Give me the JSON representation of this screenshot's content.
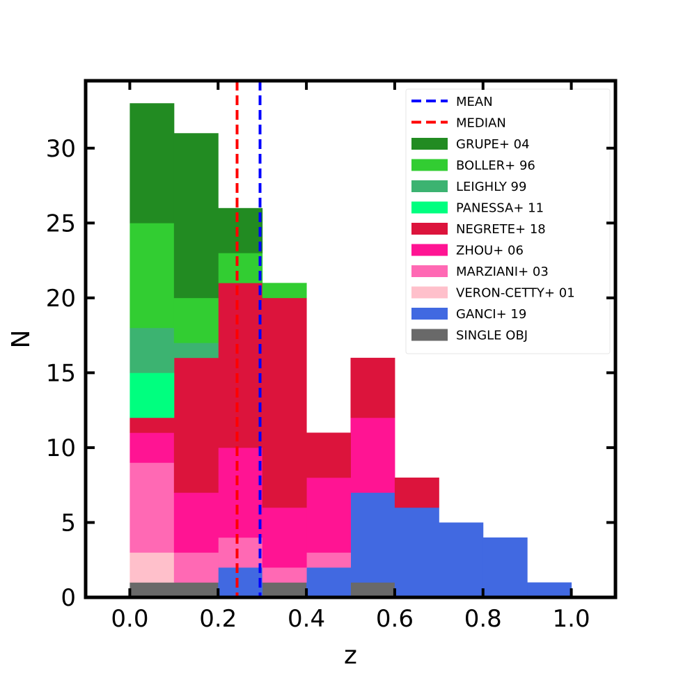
{
  "chart_data": {
    "type": "bar",
    "subtype": "stacked-histogram",
    "xlabel": "z",
    "ylabel": "N",
    "xlim": [
      -0.1,
      1.1
    ],
    "ylim": [
      0,
      34.5
    ],
    "xticks": [
      "0.0",
      "0.2",
      "0.4",
      "0.6",
      "0.8",
      "1.0"
    ],
    "xtick_values": [
      0.0,
      0.2,
      0.4,
      0.6,
      0.8,
      1.0
    ],
    "yticks": [
      "0",
      "5",
      "10",
      "15",
      "20",
      "25",
      "30"
    ],
    "ytick_values": [
      0,
      5,
      10,
      15,
      20,
      25,
      30
    ],
    "grid": false,
    "legend_position": "top-right",
    "bin_edges": [
      0.0,
      0.1,
      0.2,
      0.3,
      0.4,
      0.5,
      0.6,
      0.7,
      0.8,
      0.9,
      1.0
    ],
    "series": [
      {
        "name": "SINGLE OBJ",
        "color": "#696969",
        "values": [
          1,
          1,
          0,
          1,
          0,
          1,
          0,
          0,
          0,
          0
        ]
      },
      {
        "name": "GANCI+ 19",
        "color": "#4169e1",
        "values": [
          0,
          0,
          2,
          0,
          2,
          6,
          6,
          5,
          4,
          1
        ]
      },
      {
        "name": "VERON-CETTY+ 01",
        "color": "#ffc0cb",
        "values": [
          2,
          0,
          0,
          0,
          0,
          0,
          0,
          0,
          0,
          0
        ]
      },
      {
        "name": "MARZIANI+ 03",
        "color": "#ff69b4",
        "values": [
          6,
          2,
          2,
          1,
          1,
          0,
          0,
          0,
          0,
          0
        ]
      },
      {
        "name": "ZHOU+ 06",
        "color": "#ff1493",
        "values": [
          2,
          4,
          6,
          4,
          5,
          5,
          0,
          0,
          0,
          0
        ]
      },
      {
        "name": "NEGRETE+ 18",
        "color": "#dc143c",
        "values": [
          1,
          9,
          11,
          14,
          3,
          4,
          2,
          0,
          0,
          0
        ]
      },
      {
        "name": "PANESSA+ 11",
        "color": "#00ff7f",
        "values": [
          3,
          0,
          0,
          0,
          0,
          0,
          0,
          0,
          0,
          0
        ]
      },
      {
        "name": "LEIGHLY 99",
        "color": "#3cb371",
        "values": [
          3,
          1,
          0,
          0,
          0,
          0,
          0,
          0,
          0,
          0
        ]
      },
      {
        "name": "BOLLER+ 96",
        "color": "#32cd32",
        "values": [
          7,
          3,
          2,
          1,
          0,
          0,
          0,
          0,
          0,
          0
        ]
      },
      {
        "name": "GRUPE+ 04",
        "color": "#228b22",
        "values": [
          8,
          11,
          3,
          0,
          0,
          0,
          0,
          0,
          0,
          0
        ]
      }
    ],
    "vlines": [
      {
        "name": "MEAN",
        "x": 0.295,
        "color": "#0000ff",
        "style": "dashed"
      },
      {
        "name": "MEDIAN",
        "x": 0.243,
        "color": "#ff0000",
        "style": "dashed"
      }
    ],
    "legend_order": [
      "MEAN",
      "MEDIAN",
      "GRUPE+ 04",
      "BOLLER+ 96",
      "LEIGHLY 99",
      "PANESSA+ 11",
      "NEGRETE+ 18",
      "ZHOU+ 06",
      "MARZIANI+ 03",
      "VERON-CETTY+ 01",
      "GANCI+ 19",
      "SINGLE OBJ"
    ]
  }
}
